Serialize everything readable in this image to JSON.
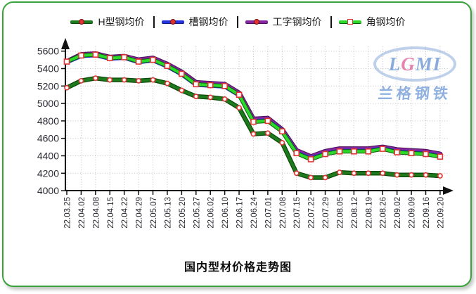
{
  "watermark": {
    "logo_prefix": "L",
    "logo_g": "G",
    "logo_suffix": "MI",
    "company": "兰格钢铁"
  },
  "colors": {
    "frame_border": "#3aa23a",
    "axis": "#111111",
    "grid": "#c4c4c4",
    "marker_red": "#e23333",
    "tick_label": "#2b2b33"
  },
  "chart_data": {
    "type": "line",
    "title": "国内型材价格走势图",
    "xlabel": "",
    "ylabel": "",
    "ylim": [
      4000,
      5600
    ],
    "ytick_step": 200,
    "yticks": [
      4000,
      4200,
      4400,
      4600,
      4800,
      5000,
      5200,
      5400,
      5600
    ],
    "grid": "dotted",
    "legend_position": "top",
    "x": [
      "22.03.25",
      "22.04.02",
      "22.04.08",
      "22.04.15",
      "22.04.22",
      "22.04.29",
      "22.05.07",
      "22.05.13",
      "22.05.20",
      "22.05.27",
      "22.06.02",
      "22.06.10",
      "22.06.17",
      "22.06.24",
      "22.07.01",
      "22.07.08",
      "22.07.15",
      "22.07.22",
      "22.07.29",
      "22.08.05",
      "22.08.12",
      "22.08.19",
      "22.08.26",
      "22.09.02",
      "22.09.09",
      "22.09.16",
      "22.09.20"
    ],
    "series": [
      {
        "name": "H型钢均价",
        "color": "#1d7a1d",
        "edge": "#0a4a0a",
        "marker": "circle",
        "values": [
          5180,
          5260,
          5290,
          5270,
          5270,
          5260,
          5270,
          5230,
          5150,
          5080,
          5070,
          5050,
          4950,
          4650,
          4660,
          4550,
          4200,
          4150,
          4150,
          4210,
          4200,
          4200,
          4200,
          4180,
          4180,
          4180,
          4170
        ]
      },
      {
        "name": "槽钢均价",
        "color": "#2433e0",
        "edge": "#101b80",
        "marker": "dot",
        "values": [
          5470,
          5540,
          5550,
          5510,
          5520,
          5470,
          5490,
          5420,
          5330,
          5210,
          5200,
          5190,
          5090,
          4800,
          4810,
          4690,
          4440,
          4370,
          4430,
          4460,
          4460,
          4460,
          4490,
          4450,
          4440,
          4430,
          4400
        ]
      },
      {
        "name": "工字钢均价",
        "color": "#8526a0",
        "edge": "#4a0f58",
        "marker": "dot",
        "values": [
          5480,
          5560,
          5570,
          5530,
          5540,
          5500,
          5520,
          5450,
          5360,
          5240,
          5230,
          5220,
          5120,
          4820,
          4830,
          4700,
          4460,
          4390,
          4450,
          4480,
          4480,
          4480,
          4500,
          4470,
          4460,
          4450,
          4420
        ]
      },
      {
        "name": "角钢均价",
        "color": "#2bd92b",
        "edge": "#0d5c0d",
        "marker": "square",
        "values": [
          5480,
          5550,
          5560,
          5520,
          5530,
          5480,
          5500,
          5430,
          5340,
          5220,
          5210,
          5200,
          5100,
          4790,
          4800,
          4680,
          4430,
          4360,
          4420,
          4450,
          4450,
          4450,
          4480,
          4440,
          4430,
          4420,
          4390
        ]
      }
    ]
  }
}
